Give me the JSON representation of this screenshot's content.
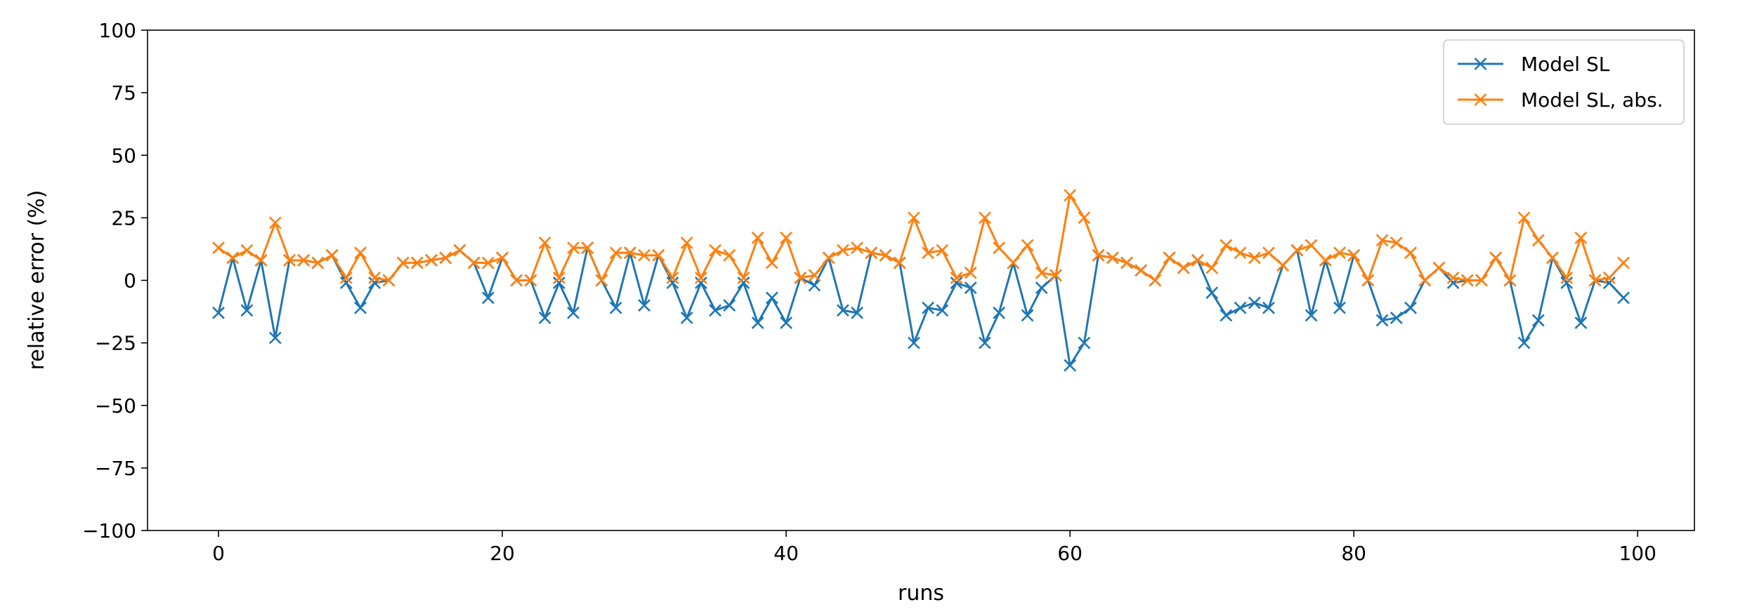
{
  "chart_data": {
    "type": "line",
    "title": "",
    "xlabel": "runs",
    "ylabel": "relative error (%)",
    "xlim": [
      -5,
      104
    ],
    "ylim": [
      -100,
      100
    ],
    "xticks": [
      0,
      20,
      40,
      60,
      80,
      100
    ],
    "yticks": [
      -100,
      -75,
      -50,
      -25,
      0,
      25,
      50,
      75,
      100
    ],
    "grid": false,
    "legend_position": "top-right",
    "marker": "x",
    "x": [
      0,
      1,
      2,
      3,
      4,
      5,
      6,
      7,
      8,
      9,
      10,
      11,
      12,
      13,
      14,
      15,
      16,
      17,
      18,
      19,
      20,
      21,
      22,
      23,
      24,
      25,
      26,
      27,
      28,
      29,
      30,
      31,
      32,
      33,
      34,
      35,
      36,
      37,
      38,
      39,
      40,
      41,
      42,
      43,
      44,
      45,
      46,
      47,
      48,
      49,
      50,
      51,
      52,
      53,
      54,
      55,
      56,
      57,
      58,
      59,
      60,
      61,
      62,
      63,
      64,
      65,
      66,
      67,
      68,
      69,
      70,
      71,
      72,
      73,
      74,
      75,
      76,
      77,
      78,
      79,
      80,
      81,
      82,
      83,
      84,
      85,
      86,
      87,
      88,
      89,
      90,
      91,
      92,
      93,
      94,
      95,
      96,
      97,
      98,
      99
    ],
    "series": [
      {
        "name": "Model SL",
        "color": "#1f77b4",
        "values": [
          -13,
          9,
          -12,
          8,
          -23,
          8,
          8,
          7,
          10,
          -1,
          -11,
          -1,
          0,
          7,
          7,
          8,
          9,
          12,
          7,
          -7,
          9,
          0,
          0,
          -15,
          -1,
          -13,
          13,
          0,
          -11,
          11,
          -10,
          10,
          -1,
          -15,
          -1,
          -12,
          -10,
          -1,
          -17,
          -7,
          -17,
          1,
          -2,
          9,
          -12,
          -13,
          11,
          10,
          7,
          -25,
          -11,
          -12,
          -1,
          -3,
          -25,
          -13,
          7,
          -14,
          -3,
          2,
          -34,
          -25,
          10,
          9,
          7,
          4,
          0,
          9,
          5,
          8,
          -5,
          -14,
          -11,
          -9,
          -11,
          6,
          12,
          -14,
          8,
          -11,
          10,
          0,
          -16,
          -15,
          -11,
          0,
          5,
          -1,
          0,
          0,
          9,
          0,
          -25,
          -16,
          9,
          -1,
          -17,
          0,
          -1,
          -7
        ]
      },
      {
        "name": "Model SL, abs.",
        "color": "#ff7f0e",
        "values": [
          13,
          9,
          12,
          8,
          23,
          8,
          8,
          7,
          10,
          1,
          11,
          1,
          0,
          7,
          7,
          8,
          9,
          12,
          7,
          7,
          9,
          0,
          0,
          15,
          1,
          13,
          13,
          0,
          11,
          11,
          10,
          10,
          1,
          15,
          1,
          12,
          10,
          1,
          17,
          7,
          17,
          1,
          2,
          9,
          12,
          13,
          11,
          10,
          7,
          25,
          11,
          12,
          1,
          3,
          25,
          13,
          7,
          14,
          3,
          2,
          34,
          25,
          10,
          9,
          7,
          4,
          0,
          9,
          5,
          8,
          5,
          14,
          11,
          9,
          11,
          6,
          12,
          14,
          8,
          11,
          10,
          0,
          16,
          15,
          11,
          0,
          5,
          1,
          0,
          0,
          9,
          0,
          25,
          16,
          9,
          1,
          17,
          0,
          1,
          7
        ]
      }
    ]
  }
}
